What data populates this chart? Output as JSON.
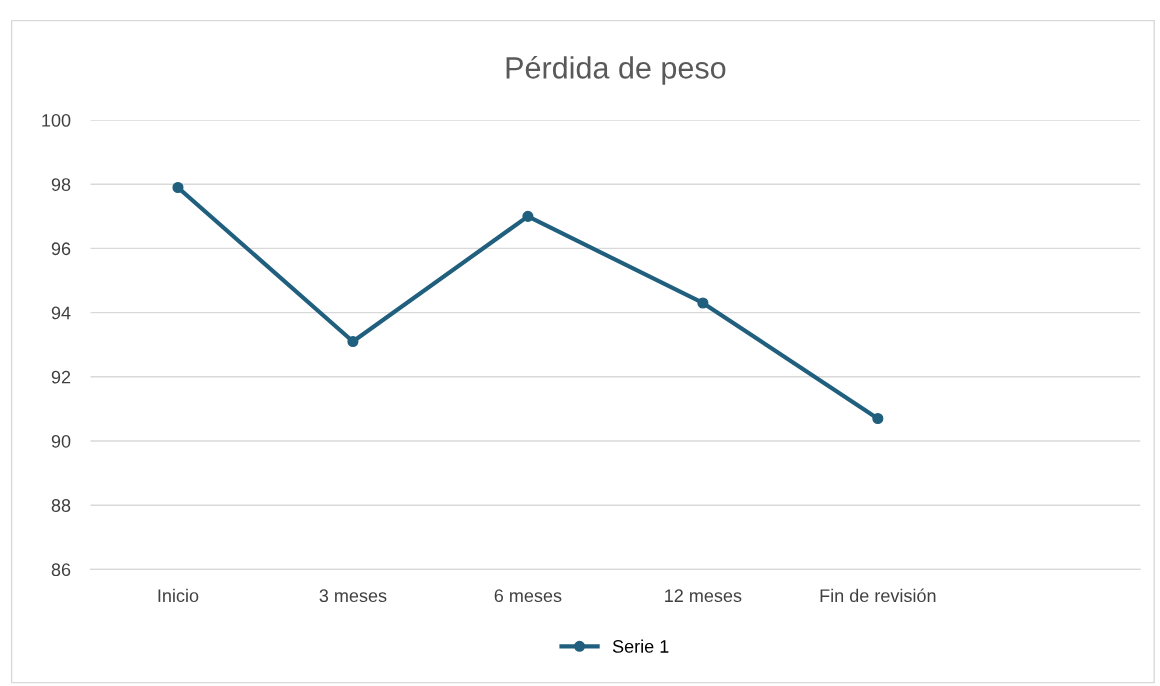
{
  "chart_data": {
    "type": "line",
    "title": "Pérdida de peso",
    "categories": [
      "Inicio",
      "3 meses",
      "6 meses",
      "12 meses",
      "Fin de revisión",
      null
    ],
    "series": [
      {
        "name": "Serie 1",
        "color": "#215f7e",
        "values": [
          97.9,
          93.1,
          97.0,
          94.3,
          90.7,
          null
        ]
      }
    ],
    "ylim": [
      86,
      100
    ],
    "yticks": [
      86,
      88,
      90,
      92,
      94,
      96,
      98,
      100
    ],
    "grid": "y",
    "legend": "bottom",
    "marker": "circle",
    "line_style": "solid"
  }
}
